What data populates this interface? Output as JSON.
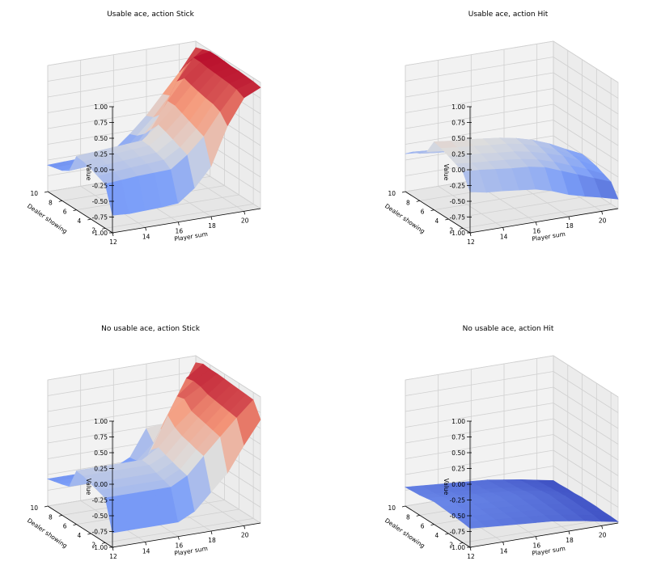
{
  "chart_data": [
    {
      "type": "surface3d",
      "title": "Usable ace, action Stick",
      "xlabel": "Player sum",
      "ylabel": "Dealer showing",
      "zlabel": "Value",
      "xticks": [
        "12",
        "14",
        "16",
        "18",
        "20"
      ],
      "yticks": [
        "2",
        "4",
        "6",
        "8",
        "10"
      ],
      "zticks": [
        "-1.00",
        "-0.75",
        "-0.50",
        "-0.25",
        "0.00",
        "0.25",
        "0.50",
        "0.75",
        "1.00"
      ],
      "xlim": [
        12,
        21
      ],
      "ylim": [
        1,
        10
      ],
      "zlim": [
        -1,
        1
      ],
      "x": [
        12,
        13,
        14,
        15,
        16,
        17,
        18,
        19,
        20,
        21
      ],
      "y": [
        1,
        2,
        3,
        4,
        5,
        6,
        7,
        8,
        9,
        10
      ],
      "z": [
        [
          -0.72,
          -0.74,
          -0.73,
          -0.72,
          -0.7,
          -0.5,
          -0.2,
          0.4,
          0.8,
          0.92
        ],
        [
          -0.3,
          -0.28,
          -0.26,
          -0.25,
          -0.24,
          -0.05,
          0.2,
          0.55,
          0.86,
          0.94
        ],
        [
          -0.25,
          -0.22,
          -0.2,
          -0.18,
          -0.16,
          0.0,
          0.25,
          0.6,
          0.88,
          0.95
        ],
        [
          -0.2,
          -0.18,
          -0.16,
          -0.14,
          -0.12,
          0.05,
          0.3,
          0.62,
          0.89,
          0.96
        ],
        [
          -0.16,
          -0.14,
          -0.12,
          -0.1,
          -0.08,
          0.1,
          0.35,
          0.65,
          0.9,
          0.96
        ],
        [
          -0.15,
          -0.13,
          -0.11,
          -0.09,
          -0.07,
          0.14,
          0.4,
          0.68,
          0.91,
          0.97
        ],
        [
          -0.45,
          -0.43,
          -0.41,
          -0.4,
          -0.38,
          0.0,
          0.4,
          0.72,
          0.93,
          0.98
        ],
        [
          -0.52,
          -0.5,
          -0.49,
          -0.48,
          -0.46,
          -0.15,
          0.12,
          0.6,
          0.93,
          0.98
        ],
        [
          -0.55,
          -0.54,
          -0.53,
          -0.52,
          -0.5,
          -0.25,
          0.0,
          0.3,
          0.75,
          0.94
        ],
        [
          -0.58,
          -0.57,
          -0.56,
          -0.55,
          -0.52,
          -0.3,
          -0.05,
          0.25,
          0.55,
          0.9
        ]
      ]
    },
    {
      "type": "surface3d",
      "title": "Usable ace, action Hit",
      "xlabel": "Player sum",
      "ylabel": "Dealer showing",
      "zlabel": "Value",
      "xticks": [
        "12",
        "14",
        "16",
        "18",
        "20"
      ],
      "yticks": [
        "2",
        "4",
        "6",
        "8",
        "10"
      ],
      "zticks": [
        "-1.00",
        "-0.75",
        "-0.50",
        "-0.25",
        "0.00",
        "0.25",
        "0.50",
        "0.75",
        "1.00"
      ],
      "xlim": [
        12,
        21
      ],
      "ylim": [
        1,
        10
      ],
      "zlim": [
        -1,
        1
      ],
      "x": [
        12,
        13,
        14,
        15,
        16,
        17,
        18,
        19,
        20,
        21
      ],
      "y": [
        1,
        2,
        3,
        4,
        5,
        6,
        7,
        8,
        9,
        10
      ],
      "z": [
        [
          -0.35,
          -0.4,
          -0.42,
          -0.45,
          -0.48,
          -0.55,
          -0.65,
          -0.72,
          -0.78,
          -0.85
        ],
        [
          -0.1,
          -0.12,
          -0.15,
          -0.18,
          -0.2,
          -0.25,
          -0.35,
          -0.45,
          -0.55,
          -0.65
        ],
        [
          -0.05,
          -0.08,
          -0.1,
          -0.12,
          -0.15,
          -0.2,
          -0.28,
          -0.38,
          -0.48,
          -0.6
        ],
        [
          0.0,
          -0.03,
          -0.05,
          -0.08,
          -0.1,
          -0.15,
          -0.22,
          -0.3,
          -0.42,
          -0.55
        ],
        [
          0.05,
          0.02,
          0.0,
          -0.03,
          -0.05,
          -0.1,
          -0.18,
          -0.28,
          -0.4,
          -0.52
        ],
        [
          0.08,
          0.05,
          0.03,
          0.0,
          -0.03,
          -0.08,
          -0.15,
          -0.25,
          -0.38,
          -0.5
        ],
        [
          -0.15,
          -0.18,
          -0.2,
          -0.22,
          -0.25,
          -0.3,
          -0.38,
          -0.45,
          -0.55,
          -0.65
        ],
        [
          -0.25,
          -0.28,
          -0.3,
          -0.32,
          -0.35,
          -0.38,
          -0.42,
          -0.5,
          -0.6,
          -0.7
        ],
        [
          -0.3,
          -0.32,
          -0.35,
          -0.38,
          -0.4,
          -0.42,
          -0.48,
          -0.55,
          -0.65,
          -0.72
        ],
        [
          -0.4,
          -0.42,
          -0.45,
          -0.48,
          -0.5,
          -0.52,
          -0.55,
          -0.62,
          -0.7,
          -0.78
        ]
      ]
    },
    {
      "type": "surface3d",
      "title": "No usable ace, action Stick",
      "xlabel": "Player sum",
      "ylabel": "Dealer showing",
      "zlabel": "Value",
      "xticks": [
        "12",
        "14",
        "16",
        "18",
        "20"
      ],
      "yticks": [
        "2",
        "4",
        "6",
        "8",
        "10"
      ],
      "zticks": [
        "-1.00",
        "-0.75",
        "-0.50",
        "-0.25",
        "0.00",
        "0.25",
        "0.50",
        "0.75",
        "1.00"
      ],
      "xlim": [
        12,
        21
      ],
      "ylim": [
        1,
        10
      ],
      "zlim": [
        -1,
        1
      ],
      "x": [
        12,
        13,
        14,
        15,
        16,
        17,
        18,
        19,
        20,
        21
      ],
      "y": [
        1,
        2,
        3,
        4,
        5,
        6,
        7,
        8,
        9,
        10
      ],
      "z": [
        [
          -0.77,
          -0.77,
          -0.77,
          -0.77,
          -0.77,
          -0.64,
          -0.38,
          -0.12,
          0.28,
          0.64
        ],
        [
          -0.29,
          -0.29,
          -0.29,
          -0.29,
          -0.29,
          -0.15,
          0.12,
          0.38,
          0.64,
          0.88
        ],
        [
          -0.25,
          -0.25,
          -0.25,
          -0.25,
          -0.25,
          -0.12,
          0.15,
          0.41,
          0.66,
          0.89
        ],
        [
          -0.21,
          -0.21,
          -0.21,
          -0.21,
          -0.21,
          -0.08,
          0.19,
          0.44,
          0.68,
          0.9
        ],
        [
          -0.16,
          -0.16,
          -0.16,
          -0.16,
          -0.16,
          -0.04,
          0.22,
          0.47,
          0.7,
          0.91
        ],
        [
          -0.15,
          -0.15,
          -0.15,
          -0.15,
          -0.15,
          0.01,
          0.28,
          0.5,
          0.72,
          0.92
        ],
        [
          -0.47,
          -0.47,
          -0.47,
          -0.47,
          -0.47,
          -0.1,
          0.4,
          0.62,
          0.77,
          0.93
        ],
        [
          -0.51,
          -0.51,
          -0.51,
          -0.51,
          -0.51,
          -0.38,
          0.11,
          0.59,
          0.79,
          0.93
        ],
        [
          -0.54,
          -0.54,
          -0.54,
          -0.54,
          -0.54,
          -0.42,
          -0.18,
          0.29,
          0.76,
          0.94
        ],
        [
          -0.57,
          -0.57,
          -0.57,
          -0.57,
          -0.57,
          -0.44,
          -0.02,
          0.0,
          0.43,
          0.89
        ]
      ]
    },
    {
      "type": "surface3d",
      "title": "No usable ace, action Hit",
      "xlabel": "Player sum",
      "ylabel": "Dealer showing",
      "zlabel": "Value",
      "xticks": [
        "12",
        "14",
        "16",
        "18",
        "20"
      ],
      "yticks": [
        "2",
        "4",
        "6",
        "8",
        "10"
      ],
      "zticks": [
        "-1.00",
        "-0.75",
        "-0.50",
        "-0.25",
        "0.00",
        "0.25",
        "0.50",
        "0.75",
        "1.00"
      ],
      "xlim": [
        12,
        21
      ],
      "ylim": [
        1,
        10
      ],
      "zlim": [
        -1,
        1
      ],
      "x": [
        12,
        13,
        14,
        15,
        16,
        17,
        18,
        19,
        20,
        21
      ],
      "y": [
        1,
        2,
        3,
        4,
        5,
        6,
        7,
        8,
        9,
        10
      ],
      "z": [
        [
          -0.7,
          -0.72,
          -0.74,
          -0.76,
          -0.78,
          -0.8,
          -0.84,
          -0.88,
          -0.93,
          -0.98
        ],
        [
          -0.68,
          -0.7,
          -0.72,
          -0.74,
          -0.76,
          -0.78,
          -0.82,
          -0.86,
          -0.91,
          -0.97
        ],
        [
          -0.67,
          -0.69,
          -0.71,
          -0.73,
          -0.75,
          -0.77,
          -0.81,
          -0.85,
          -0.9,
          -0.97
        ],
        [
          -0.66,
          -0.68,
          -0.7,
          -0.72,
          -0.74,
          -0.76,
          -0.8,
          -0.84,
          -0.9,
          -0.96
        ],
        [
          -0.65,
          -0.67,
          -0.69,
          -0.71,
          -0.73,
          -0.75,
          -0.79,
          -0.83,
          -0.89,
          -0.96
        ],
        [
          -0.64,
          -0.66,
          -0.68,
          -0.7,
          -0.72,
          -0.74,
          -0.78,
          -0.82,
          -0.89,
          -0.96
        ],
        [
          -0.66,
          -0.68,
          -0.7,
          -0.72,
          -0.74,
          -0.76,
          -0.8,
          -0.84,
          -0.9,
          -0.97
        ],
        [
          -0.68,
          -0.7,
          -0.72,
          -0.74,
          -0.76,
          -0.78,
          -0.82,
          -0.86,
          -0.91,
          -0.97
        ],
        [
          -0.69,
          -0.71,
          -0.73,
          -0.75,
          -0.77,
          -0.79,
          -0.83,
          -0.87,
          -0.92,
          -0.98
        ],
        [
          -0.7,
          -0.72,
          -0.74,
          -0.76,
          -0.78,
          -0.8,
          -0.84,
          -0.88,
          -0.93,
          -0.98
        ]
      ]
    }
  ]
}
